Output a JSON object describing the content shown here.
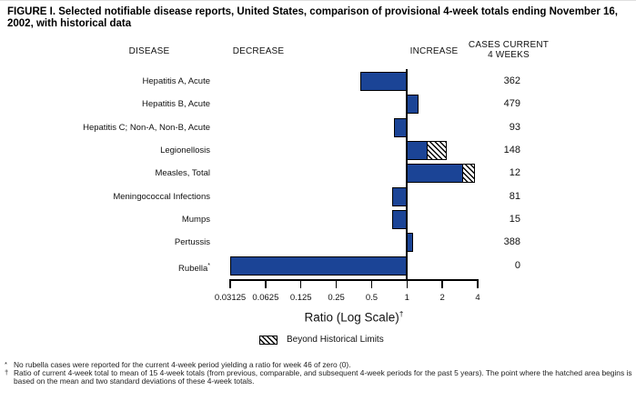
{
  "title": "FIGURE I. Selected notifiable disease reports, United States, comparison of provisional 4-week totals ending November 16, 2002, with historical data",
  "headers": {
    "disease": "DISEASE",
    "decrease": "DECREASE",
    "increase": "INCREASE",
    "cases_line1": "CASES CURRENT",
    "cases_line2": "4 WEEKS"
  },
  "chart_data": {
    "type": "bar",
    "orientation": "horizontal",
    "x_scale": "log2",
    "x_label": "Ratio (Log Scale)",
    "x_label_superscript": "†",
    "x_ticks": [
      "0.03125",
      "0.0625",
      "0.125",
      "0.25",
      "0.5",
      "1",
      "2",
      "4"
    ],
    "x_tick_values": [
      0.03125,
      0.0625,
      0.125,
      0.25,
      0.5,
      1,
      2,
      4
    ],
    "axis_min": 0.03125,
    "axis_max": 4,
    "baseline": 1,
    "bar_color": "#1b4496",
    "legend_label": "Beyond Historical Limits",
    "rows": [
      {
        "disease": "Hepatitis A, Acute",
        "ratio": 0.4,
        "cases": "362"
      },
      {
        "disease": "Hepatitis B, Acute",
        "ratio": 1.25,
        "cases": "479"
      },
      {
        "disease": "Hepatitis C; Non-A, Non-B, Acute",
        "ratio": 0.77,
        "cases": "93"
      },
      {
        "disease": "Legionellosis",
        "ratio": 2.2,
        "beyond_limit_start": 1.5,
        "cases": "148"
      },
      {
        "disease": "Measles, Total",
        "ratio": 3.8,
        "beyond_limit_start": 3,
        "cases": "12"
      },
      {
        "disease": "Meningococcal Infections",
        "ratio": 0.75,
        "cases": "81"
      },
      {
        "disease": "Mumps",
        "ratio": 0.75,
        "cases": "15"
      },
      {
        "disease": "Pertussis",
        "ratio": 1.12,
        "cases": "388"
      },
      {
        "disease": "Rubella",
        "label_superscript": "*",
        "ratio": 0,
        "cases": "0"
      }
    ]
  },
  "footnotes": [
    {
      "marker": "*",
      "text": "No rubella cases were reported for the current 4-week period yielding a ratio for week 46 of zero (0)."
    },
    {
      "marker": "†",
      "text": "Ratio of current 4-week total to mean of 15 4-week totals (from previous, comparable, and subsequent 4-week periods for the past 5 years). The point where the hatched area begins is based on the mean and two standard deviations of these 4-week totals."
    }
  ]
}
